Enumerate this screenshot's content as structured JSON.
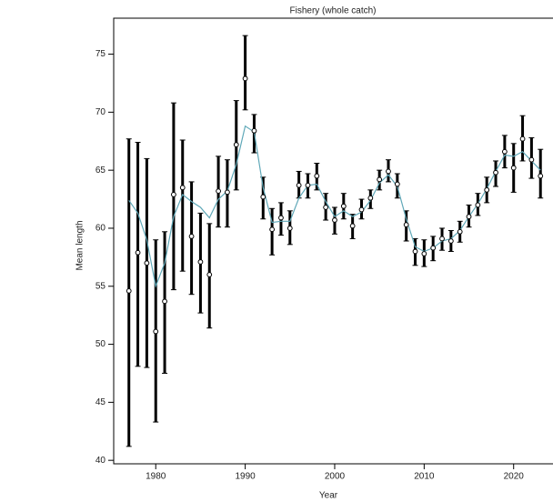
{
  "chart_data": {
    "type": "errorbar",
    "title": "Fishery (whole catch)",
    "xlabel": "Year",
    "ylabel": "Mean length",
    "x": [
      1977,
      1978,
      1979,
      1980,
      1981,
      1982,
      1983,
      1984,
      1985,
      1986,
      1987,
      1988,
      1989,
      1990,
      1991,
      1992,
      1993,
      1994,
      1995,
      1996,
      1997,
      1998,
      1999,
      2000,
      2001,
      2002,
      2003,
      2004,
      2005,
      2006,
      2007,
      2008,
      2009,
      2010,
      2011,
      2012,
      2013,
      2014,
      2015,
      2016,
      2017,
      2018,
      2019,
      2020,
      2021,
      2022,
      2023
    ],
    "values": [
      54.6,
      57.9,
      57.0,
      51.1,
      53.7,
      62.9,
      63.5,
      59.3,
      57.1,
      56.0,
      63.2,
      63.1,
      67.2,
      72.9,
      68.4,
      62.7,
      59.9,
      60.9,
      60.0,
      63.7,
      63.7,
      64.5,
      61.8,
      60.7,
      61.9,
      60.2,
      61.6,
      62.6,
      64.2,
      64.9,
      63.8,
      60.3,
      58.0,
      57.8,
      58.3,
      59.1,
      58.9,
      59.7,
      61.0,
      62.0,
      63.3,
      64.8,
      66.6,
      65.2,
      67.7,
      65.9,
      64.5
    ],
    "lower": [
      41.2,
      48.1,
      48.0,
      43.3,
      47.5,
      54.7,
      56.3,
      54.3,
      52.7,
      51.4,
      60.1,
      60.1,
      63.3,
      70.2,
      66.5,
      60.8,
      57.7,
      59.4,
      58.6,
      62.6,
      62.6,
      63.3,
      60.7,
      59.5,
      60.8,
      59.1,
      60.8,
      61.7,
      63.3,
      64.0,
      62.6,
      58.9,
      56.8,
      56.7,
      57.2,
      58.1,
      58.0,
      58.8,
      60.1,
      61.1,
      62.2,
      63.6,
      65.2,
      63.1,
      65.8,
      64.3,
      62.6
    ],
    "upper": [
      67.7,
      67.4,
      66.0,
      59.0,
      59.7,
      70.8,
      67.6,
      64.0,
      61.3,
      60.4,
      66.2,
      65.9,
      71.0,
      76.6,
      69.8,
      64.4,
      61.7,
      62.2,
      61.5,
      64.9,
      64.7,
      65.6,
      63.0,
      61.8,
      63.0,
      61.2,
      62.5,
      63.3,
      65.0,
      65.9,
      64.7,
      61.5,
      59.1,
      59.0,
      59.3,
      60.0,
      59.8,
      60.6,
      62.0,
      63.0,
      64.4,
      65.8,
      68.0,
      67.3,
      69.7,
      67.8,
      66.8
    ],
    "fit": [
      62.4,
      61.3,
      59.0,
      55.0,
      57.0,
      61.0,
      62.9,
      62.3,
      61.8,
      60.9,
      62.5,
      63.2,
      65.5,
      68.8,
      68.3,
      63.5,
      60.5,
      60.6,
      60.6,
      62.6,
      63.7,
      63.8,
      62.3,
      61.0,
      61.5,
      61.0,
      61.4,
      62.4,
      63.9,
      64.6,
      63.6,
      60.8,
      58.4,
      58.0,
      58.3,
      58.9,
      59.1,
      59.8,
      61.0,
      62.1,
      63.4,
      64.9,
      66.3,
      66.2,
      66.6,
      65.8,
      65.0
    ],
    "color": "#000000",
    "fit_color": "#5fa8b8",
    "xlim": [
      1975.3,
      2024.4
    ],
    "ylim": [
      39.7,
      78.1
    ],
    "xticks": [
      1980,
      1990,
      2000,
      2010,
      2020
    ],
    "yticks": [
      40,
      45,
      50,
      55,
      60,
      65,
      70,
      75
    ]
  }
}
